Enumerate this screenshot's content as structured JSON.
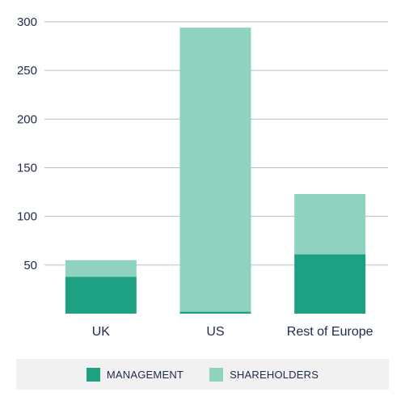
{
  "chart_data": {
    "type": "bar",
    "stacked": true,
    "categories": [
      "UK",
      "US",
      "Rest of Europe"
    ],
    "series": [
      {
        "name": "MANAGEMENT",
        "color": "#1ea183",
        "values": [
          38,
          2,
          61
        ]
      },
      {
        "name": "SHAREHOLDERS",
        "color": "#8ed2bf",
        "values": [
          17,
          292,
          62
        ]
      }
    ],
    "ylim": [
      0,
      300
    ],
    "yticks": [
      50,
      100,
      150,
      200,
      250,
      300
    ],
    "grid": true,
    "legend_position": "bottom"
  }
}
